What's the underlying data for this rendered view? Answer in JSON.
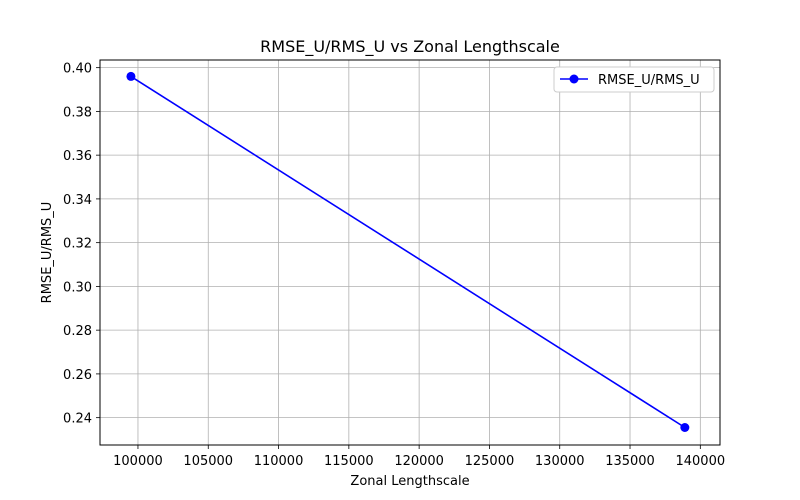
{
  "chart_data": {
    "type": "line",
    "title": "RMSE_U/RMS_U vs Zonal Lengthscale",
    "xlabel": "Zonal Lengthscale",
    "ylabel": "RMSE_U/RMS_U",
    "xlim": [
      97300,
      141400
    ],
    "ylim": [
      0.2275,
      0.4035
    ],
    "xticks": [
      100000,
      105000,
      110000,
      115000,
      120000,
      125000,
      130000,
      135000,
      140000
    ],
    "xtick_labels": [
      "100000",
      "105000",
      "110000",
      "115000",
      "120000",
      "125000",
      "130000",
      "135000",
      "140000"
    ],
    "yticks": [
      0.24,
      0.26,
      0.28,
      0.3,
      0.32,
      0.34,
      0.36,
      0.38,
      0.4
    ],
    "ytick_labels": [
      "0.24",
      "0.26",
      "0.28",
      "0.30",
      "0.32",
      "0.34",
      "0.36",
      "0.38",
      "0.40"
    ],
    "grid": true,
    "legend_position": "top-right",
    "series": [
      {
        "name": "RMSE_U/RMS_U",
        "color": "#0000ff",
        "marker": "circle",
        "x": [
          99500,
          138900
        ],
        "y": [
          0.396,
          0.2355
        ]
      }
    ]
  }
}
